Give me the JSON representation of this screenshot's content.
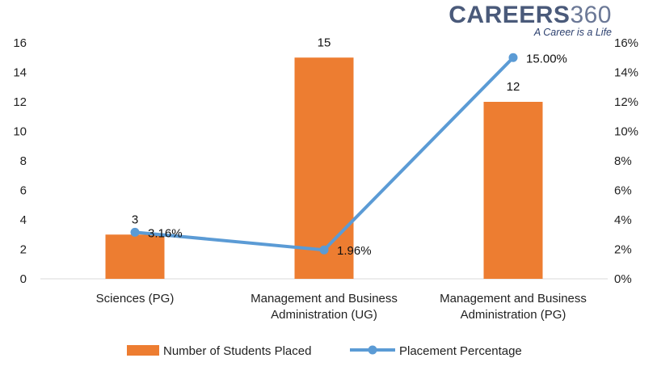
{
  "logo": {
    "brand": "CAREERS",
    "brand_number": "360",
    "tagline": "A Career is a Life"
  },
  "chart_data": {
    "type": "bar",
    "categories": [
      [
        "Sciences (PG)"
      ],
      [
        "Management and Business",
        "Administration (UG)"
      ],
      [
        "Management and Business",
        "Administration (PG)"
      ]
    ],
    "series": [
      {
        "name": "Number of Students Placed",
        "type": "bar",
        "axis": "left",
        "values": [
          3,
          15,
          12
        ],
        "labels": [
          "3",
          "15",
          "12"
        ],
        "color": "#ed7d31"
      },
      {
        "name": "Placement Percentage",
        "type": "line",
        "axis": "right",
        "values": [
          3.16,
          1.96,
          15.0
        ],
        "labels": [
          "3.16%",
          "1.96%",
          "15.00%"
        ],
        "color": "#5b9bd5"
      }
    ],
    "y_left": {
      "min": 0,
      "max": 16,
      "step": 2,
      "ticks": [
        "0",
        "2",
        "4",
        "6",
        "8",
        "10",
        "12",
        "14",
        "16"
      ]
    },
    "y_right": {
      "min": 0,
      "max": 16,
      "step": 2,
      "ticks": [
        "0%",
        "2%",
        "4%",
        "6%",
        "8%",
        "10%",
        "12%",
        "14%",
        "16%"
      ]
    },
    "grid": false,
    "legend": "bottom"
  }
}
